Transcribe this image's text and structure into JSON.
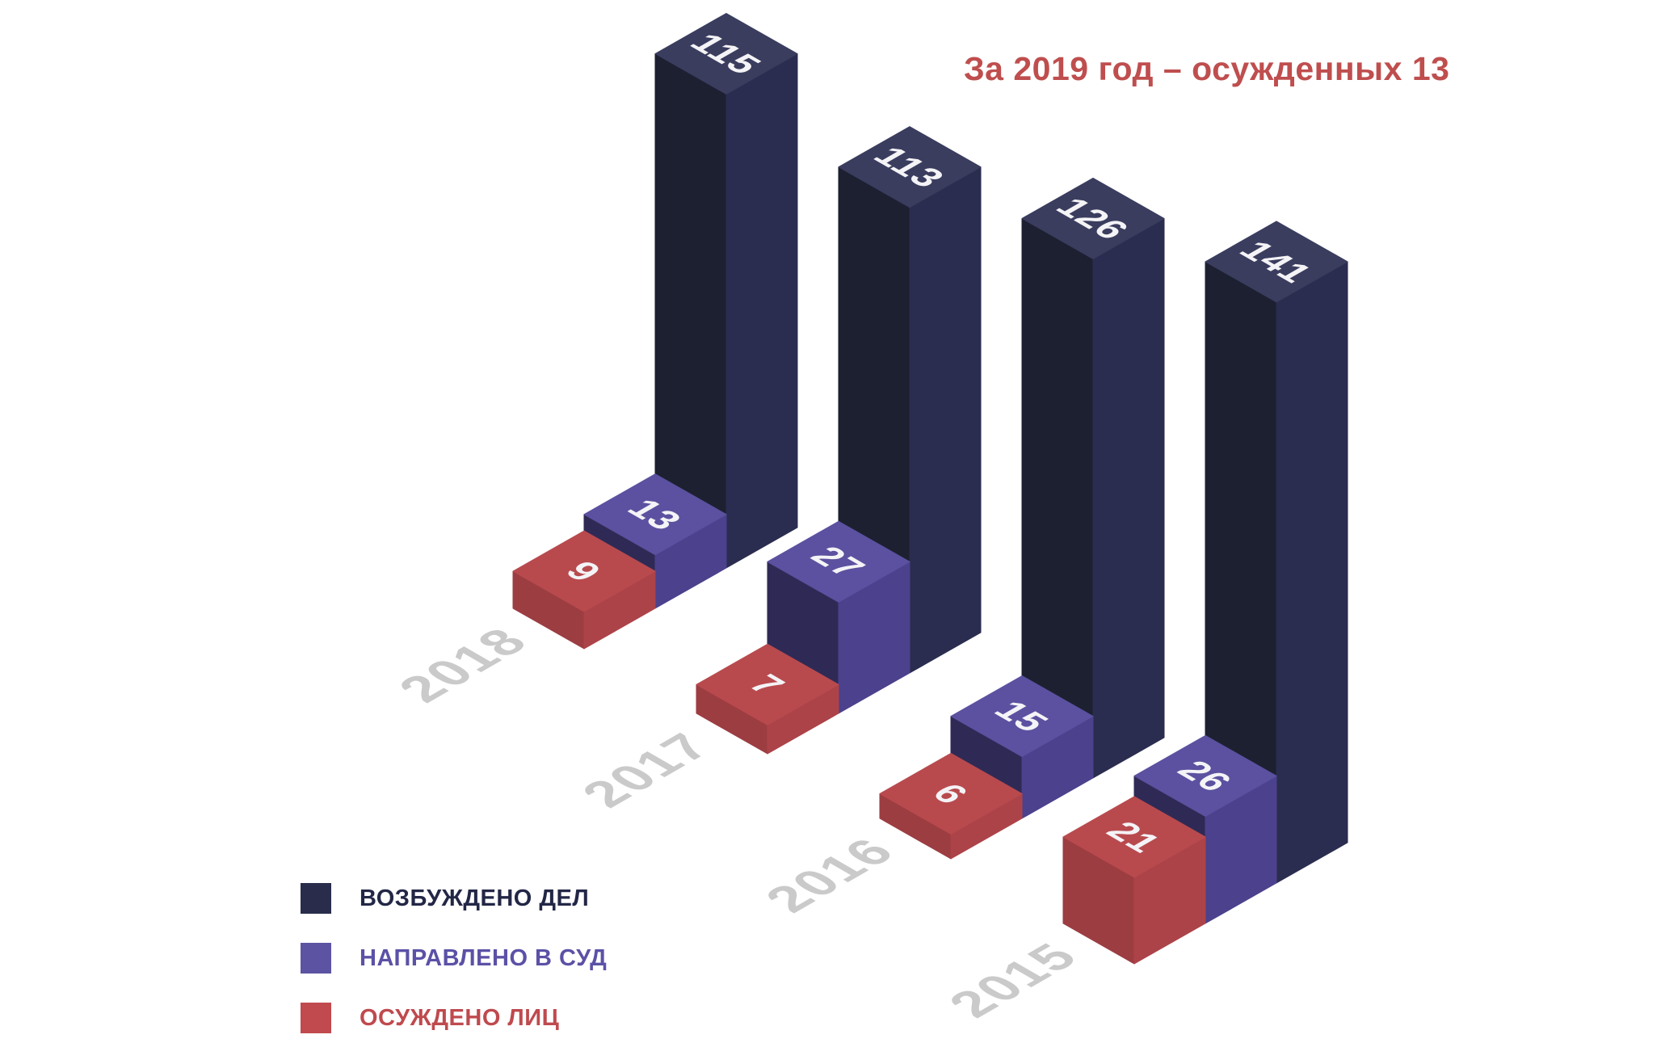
{
  "title": {
    "text": "За 2019 год – осужденных 13",
    "color": "#bf4e4e"
  },
  "chart_data": {
    "type": "bar",
    "projection": "isometric-3d",
    "background": "#ffffff",
    "categories": [
      "2018",
      "2017",
      "2016",
      "2015"
    ],
    "series": [
      {
        "key": "opened-cases",
        "name": "ВОЗБУЖДЕНО ДЕЛ",
        "values": [
          115,
          113,
          126,
          141
        ],
        "faces": {
          "top": "#3a3d5e",
          "left": "#1d2031",
          "right": "#2a2d4f"
        },
        "legend_swatch": "#292d4b",
        "legend_text_color": "#232746"
      },
      {
        "key": "sent-to-court",
        "name": "НАПРАВЛЕНО В СУД",
        "values": [
          13,
          27,
          15,
          26
        ],
        "faces": {
          "top": "#5b51a0",
          "left": "#2f2a55",
          "right": "#4b418c"
        },
        "legend_swatch": "#5c54a3",
        "legend_text_color": "#5b51a6"
      },
      {
        "key": "convicted-persons",
        "name": "ОСУЖДЕНО ЛИЦ",
        "values": [
          9,
          7,
          6,
          21
        ],
        "faces": {
          "top": "#b84a4e",
          "left": "#9c3d42",
          "right": "#ac4348"
        },
        "legend_swatch": "#c04a4e",
        "legend_text_color": "#bf4a4e"
      }
    ],
    "value_label_color": "#f4f3f6",
    "category_label_color": "#cacaca",
    "legend_position": "bottom-left",
    "grid": false,
    "axes_visible": false
  }
}
